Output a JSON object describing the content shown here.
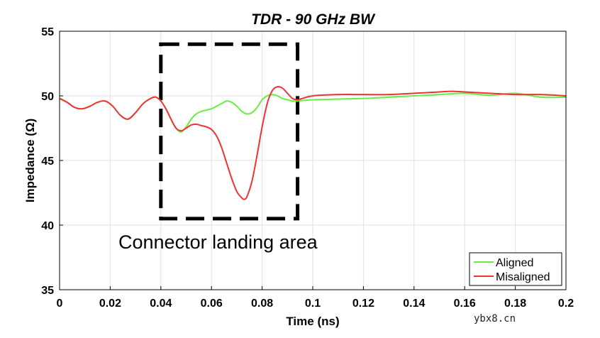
{
  "chart_data": {
    "type": "line",
    "title": "TDR - 90 GHz BW",
    "xlabel": "Time (ns)",
    "ylabel": "Impedance (Ω)",
    "xlim": [
      0,
      0.2
    ],
    "ylim": [
      35,
      55
    ],
    "xticks": [
      "0",
      "0.02",
      "0.04",
      "0.06",
      "0.08",
      "0.1",
      "0.12",
      "0.14",
      "0.16",
      "0.18",
      "0.2"
    ],
    "yticks": [
      "35",
      "40",
      "45",
      "50",
      "55"
    ],
    "grid": true,
    "legend_position": "bottom-right",
    "annotation": {
      "text": "Connector landing area",
      "box_x": [
        0.04,
        0.094
      ],
      "box_y": [
        40.5,
        54
      ]
    },
    "series": [
      {
        "name": "Aligned",
        "color": "#66ee44",
        "x": [
          0,
          0.003,
          0.006,
          0.009,
          0.012,
          0.015,
          0.018,
          0.021,
          0.024,
          0.027,
          0.03,
          0.033,
          0.036,
          0.038,
          0.04,
          0.042,
          0.044,
          0.046,
          0.048,
          0.05,
          0.052,
          0.054,
          0.056,
          0.058,
          0.06,
          0.062,
          0.064,
          0.066,
          0.068,
          0.07,
          0.072,
          0.074,
          0.076,
          0.078,
          0.08,
          0.082,
          0.084,
          0.086,
          0.088,
          0.09,
          0.092,
          0.094,
          0.1,
          0.11,
          0.12,
          0.13,
          0.14,
          0.15,
          0.16,
          0.17,
          0.18,
          0.19,
          0.2
        ],
        "y": [
          49.8,
          49.5,
          49.1,
          49.0,
          49.2,
          49.5,
          49.6,
          49.2,
          48.5,
          48.2,
          48.7,
          49.4,
          49.8,
          49.9,
          49.6,
          49.0,
          48.2,
          47.5,
          47.2,
          47.6,
          48.2,
          48.6,
          48.8,
          48.9,
          49.0,
          49.2,
          49.4,
          49.6,
          49.5,
          49.2,
          48.8,
          48.6,
          48.7,
          49.1,
          49.7,
          50.0,
          50.1,
          50.0,
          49.8,
          49.7,
          49.6,
          49.6,
          49.7,
          49.75,
          49.8,
          49.9,
          50.0,
          50.1,
          50.2,
          50.05,
          50.2,
          49.9,
          49.9
        ]
      },
      {
        "name": "Misaligned",
        "color": "#ee3333",
        "x": [
          0,
          0.003,
          0.006,
          0.009,
          0.012,
          0.015,
          0.018,
          0.021,
          0.024,
          0.027,
          0.03,
          0.033,
          0.036,
          0.038,
          0.04,
          0.042,
          0.044,
          0.046,
          0.048,
          0.05,
          0.052,
          0.054,
          0.056,
          0.058,
          0.06,
          0.062,
          0.064,
          0.066,
          0.068,
          0.07,
          0.072,
          0.073,
          0.074,
          0.076,
          0.078,
          0.08,
          0.082,
          0.084,
          0.086,
          0.088,
          0.09,
          0.092,
          0.094,
          0.096,
          0.1,
          0.11,
          0.12,
          0.13,
          0.14,
          0.15,
          0.155,
          0.16,
          0.17,
          0.18,
          0.19,
          0.2
        ],
        "y": [
          49.8,
          49.5,
          49.1,
          49.0,
          49.2,
          49.5,
          49.6,
          49.2,
          48.5,
          48.2,
          48.7,
          49.4,
          49.8,
          49.9,
          49.6,
          49.0,
          48.2,
          47.5,
          47.3,
          47.5,
          47.75,
          47.8,
          47.7,
          47.6,
          47.4,
          46.9,
          46.0,
          44.8,
          43.6,
          42.6,
          42.1,
          42.0,
          42.2,
          43.4,
          45.4,
          47.6,
          49.4,
          50.4,
          50.7,
          50.6,
          50.2,
          49.8,
          49.7,
          49.8,
          50.0,
          50.1,
          50.1,
          50.1,
          50.2,
          50.3,
          50.35,
          50.3,
          50.2,
          50.1,
          50.1,
          50.0
        ]
      }
    ]
  },
  "watermark": "ybx8.cn"
}
